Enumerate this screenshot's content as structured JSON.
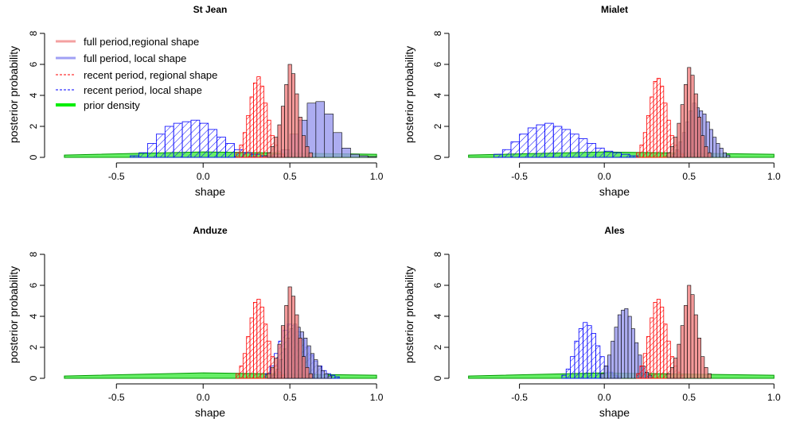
{
  "figure": {
    "colors": {
      "full_regional": "#f08080",
      "full_local": "#9999ee",
      "recent_regional": "#ff0000",
      "recent_local": "#0000ff",
      "prior": "#00dd00",
      "prior_fill": "#66ee66"
    }
  },
  "chart_data": [
    {
      "type": "histogram",
      "title": "St Jean",
      "xlabel": "shape",
      "ylabel": "posterior probability",
      "xlim": [
        -0.85,
        1.05
      ],
      "ylim": [
        0,
        8
      ],
      "xticks": [
        "-0.5",
        "0.0",
        "0.5",
        "1.0"
      ],
      "yticks": [
        "0",
        "2",
        "4",
        "6",
        "8"
      ],
      "legend": {
        "placement": "top-left",
        "entries": [
          "full period,regional shape",
          "full period, local shape",
          "recent period, regional shape",
          "recent period, local shape",
          "prior density"
        ]
      },
      "series": [
        {
          "name": "full period,regional shape",
          "x_start": 0.37,
          "bin_width": 0.02,
          "values": [
            0.3,
            0.7,
            1.3,
            2.1,
            3.3,
            4.7,
            6.0,
            5.4,
            4.1,
            2.6,
            1.4,
            0.7,
            0.3
          ]
        },
        {
          "name": "full period, local shape",
          "x_start": 0.35,
          "bin_width": 0.05,
          "values": [
            0.1,
            0.2,
            0.5,
            1.5,
            2.4,
            3.5,
            3.6,
            2.8,
            1.6,
            0.6,
            0.2,
            0.1,
            0.05
          ]
        },
        {
          "name": "recent period, regional shape",
          "x_start": 0.19,
          "bin_width": 0.02,
          "values": [
            0.3,
            0.8,
            1.6,
            2.7,
            3.9,
            4.8,
            5.2,
            4.6,
            3.5,
            2.4,
            1.4,
            0.8,
            0.4,
            0.2
          ]
        },
        {
          "name": "recent period, local shape",
          "x_start": -0.42,
          "bin_width": 0.05,
          "values": [
            0.1,
            0.3,
            0.9,
            1.5,
            2.0,
            2.2,
            2.3,
            2.4,
            2.2,
            1.8,
            1.3,
            0.9,
            0.5,
            0.3,
            0.2,
            0.1
          ]
        },
        {
          "name": "prior density",
          "x": [
            -0.8,
            0.0,
            1.0
          ],
          "y": [
            0.15,
            0.35,
            0.2
          ]
        }
      ]
    },
    {
      "type": "histogram",
      "title": "Mialet",
      "xlabel": "shape",
      "ylabel": "posterior probability",
      "xlim": [
        -0.85,
        1.05
      ],
      "ylim": [
        0,
        8
      ],
      "xticks": [
        "-0.5",
        "0.0",
        "0.5",
        "1.0"
      ],
      "yticks": [
        "0",
        "2",
        "4",
        "6",
        "8"
      ],
      "series": [
        {
          "name": "full period,regional shape",
          "x_start": 0.37,
          "bin_width": 0.02,
          "values": [
            0.3,
            0.7,
            1.3,
            2.2,
            3.4,
            4.7,
            5.8,
            5.3,
            4.1,
            2.6,
            1.4,
            0.7,
            0.3
          ]
        },
        {
          "name": "full period, local shape",
          "x_start": 0.4,
          "bin_width": 0.02,
          "values": [
            0.2,
            0.5,
            1.0,
            1.6,
            2.3,
            3.0,
            3.5,
            3.2,
            3.0,
            2.8,
            2.3,
            1.8,
            1.3,
            0.9,
            0.6,
            0.3,
            0.15
          ]
        },
        {
          "name": "recent period, regional shape",
          "x_start": 0.19,
          "bin_width": 0.02,
          "values": [
            0.3,
            0.8,
            1.6,
            2.7,
            3.9,
            4.9,
            5.1,
            4.6,
            3.5,
            2.4,
            1.4,
            0.8,
            0.4,
            0.2
          ]
        },
        {
          "name": "recent period, local shape",
          "x_start": -0.65,
          "bin_width": 0.05,
          "values": [
            0.2,
            0.5,
            1.0,
            1.5,
            1.9,
            2.1,
            2.2,
            2.0,
            1.8,
            1.5,
            1.2,
            0.9,
            0.6,
            0.4,
            0.3,
            0.2,
            0.1
          ]
        },
        {
          "name": "prior density",
          "x": [
            -0.8,
            0.0,
            1.0
          ],
          "y": [
            0.15,
            0.35,
            0.2
          ]
        }
      ]
    },
    {
      "type": "histogram",
      "title": "Anduze",
      "xlabel": "shape",
      "ylabel": "posterior probability",
      "xlim": [
        -0.85,
        1.05
      ],
      "ylim": [
        0,
        8
      ],
      "xticks": [
        "-0.5",
        "0.0",
        "0.5",
        "1.0"
      ],
      "yticks": [
        "0",
        "2",
        "4",
        "6",
        "8"
      ],
      "series": [
        {
          "name": "full period,regional shape",
          "x_start": 0.37,
          "bin_width": 0.02,
          "values": [
            0.3,
            0.7,
            1.3,
            2.2,
            3.4,
            4.7,
            5.9,
            5.3,
            4.1,
            2.6,
            1.4,
            0.7,
            0.3
          ]
        },
        {
          "name": "full period, local shape",
          "x_start": 0.4,
          "bin_width": 0.02,
          "values": [
            0.2,
            0.6,
            1.2,
            1.9,
            2.6,
            3.2,
            3.5,
            3.3,
            3.0,
            2.6,
            2.1,
            1.6,
            1.2,
            0.8,
            0.5,
            0.3,
            0.15
          ]
        },
        {
          "name": "recent period, regional shape",
          "x_start": 0.19,
          "bin_width": 0.02,
          "values": [
            0.3,
            0.8,
            1.6,
            2.7,
            3.9,
            4.9,
            5.1,
            4.6,
            3.5,
            2.4,
            1.4,
            0.8,
            0.4,
            0.2
          ]
        },
        {
          "name": "recent period, local shape",
          "x_start": 0.36,
          "bin_width": 0.025,
          "values": [
            0.3,
            0.8,
            1.6,
            2.4,
            3.1,
            3.5,
            3.4,
            3.0,
            2.5,
            2.0,
            1.5,
            1.1,
            0.8,
            0.5,
            0.3,
            0.2,
            0.1
          ]
        },
        {
          "name": "prior density",
          "x": [
            -0.8,
            0.0,
            1.0
          ],
          "y": [
            0.15,
            0.35,
            0.2
          ]
        }
      ]
    },
    {
      "type": "histogram",
      "title": "Ales",
      "xlabel": "shape",
      "ylabel": "posterior probability",
      "xlim": [
        -0.85,
        1.05
      ],
      "ylim": [
        0,
        8
      ],
      "xticks": [
        "-0.5",
        "0.0",
        "0.5",
        "1.0"
      ],
      "yticks": [
        "0",
        "2",
        "4",
        "6",
        "8"
      ],
      "series": [
        {
          "name": "full period,regional shape",
          "x_start": 0.37,
          "bin_width": 0.02,
          "values": [
            0.3,
            0.7,
            1.3,
            2.2,
            3.4,
            4.7,
            6.0,
            5.4,
            4.1,
            2.6,
            1.4,
            0.7,
            0.3
          ]
        },
        {
          "name": "full period, local shape",
          "x_start": -0.02,
          "bin_width": 0.02,
          "values": [
            0.3,
            0.8,
            1.5,
            2.4,
            3.3,
            4.1,
            4.4,
            4.5,
            4.0,
            3.2,
            2.3,
            1.5,
            0.8,
            0.4,
            0.2
          ]
        },
        {
          "name": "recent period, regional shape",
          "x_start": 0.19,
          "bin_width": 0.02,
          "values": [
            0.3,
            0.8,
            1.6,
            2.7,
            3.9,
            4.9,
            5.1,
            4.6,
            3.5,
            2.4,
            1.4,
            0.8,
            0.4,
            0.2
          ]
        },
        {
          "name": "recent period, local shape",
          "x_start": -0.25,
          "bin_width": 0.025,
          "values": [
            0.2,
            0.6,
            1.4,
            2.4,
            3.2,
            3.6,
            3.4,
            2.9,
            2.1,
            1.4,
            0.8,
            0.4,
            0.2,
            0.1
          ]
        },
        {
          "name": "prior density",
          "x": [
            -0.8,
            0.0,
            1.0
          ],
          "y": [
            0.15,
            0.35,
            0.2
          ]
        }
      ]
    }
  ]
}
